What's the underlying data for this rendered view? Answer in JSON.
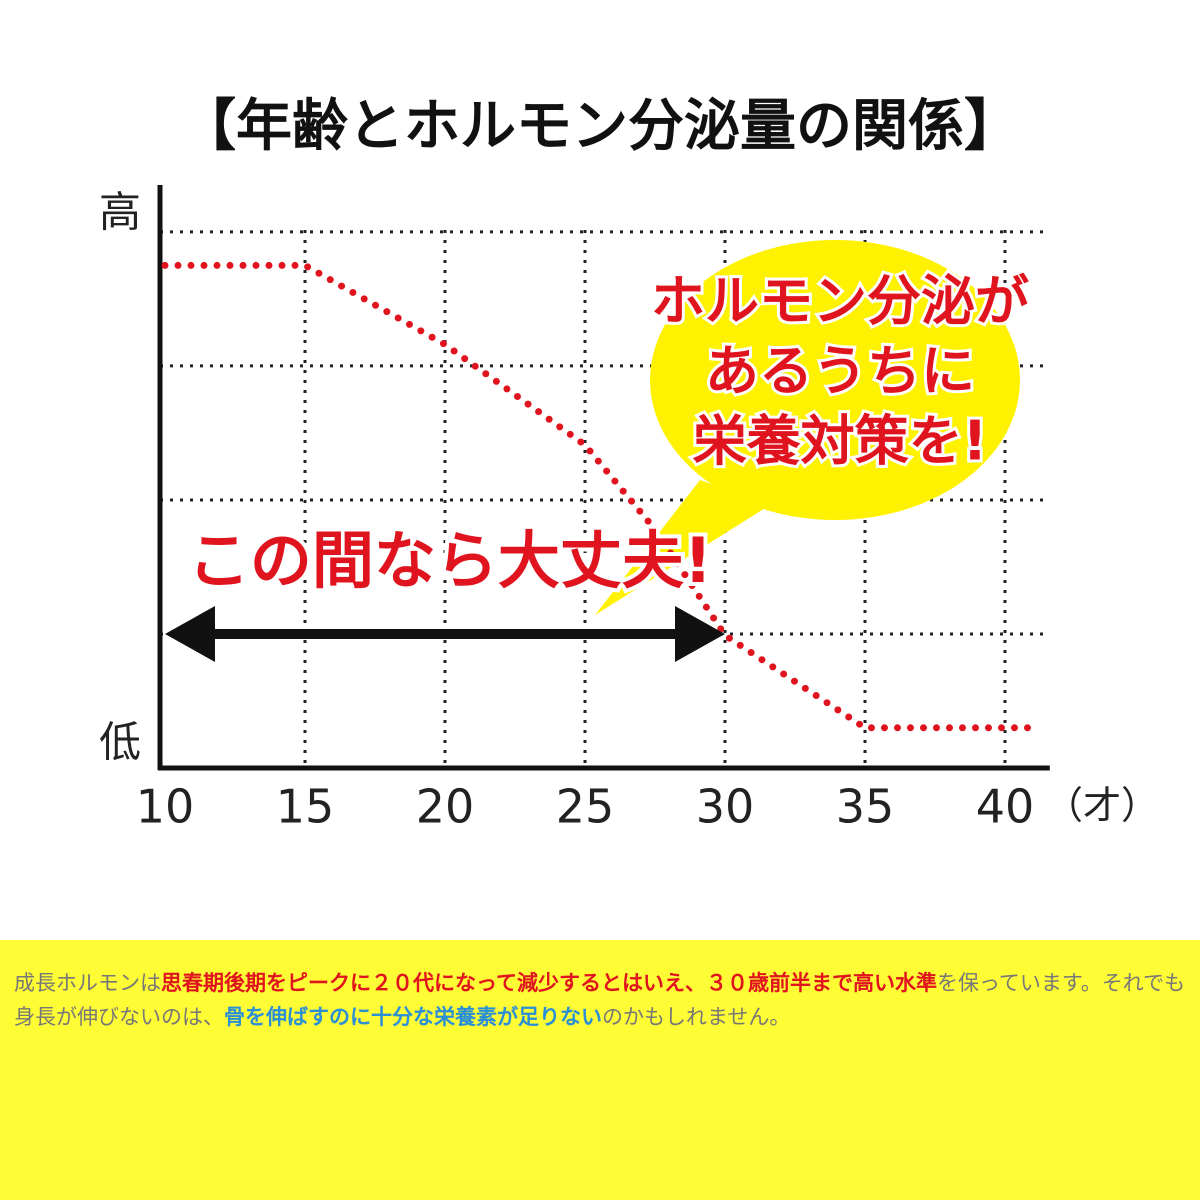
{
  "chart_data": {
    "type": "line",
    "title": "【年齢とホルモン分泌量の関係】",
    "y_high_label": "高",
    "y_low_label": "低",
    "x_unit": "（才）",
    "xlim": [
      10,
      41.6
    ],
    "ylim": [
      0,
      4.35
    ],
    "xticks": [
      10,
      15,
      20,
      25,
      30,
      35,
      40
    ],
    "x_grid": [
      15,
      20,
      25,
      30,
      35,
      40
    ],
    "y_grid": [
      1,
      2,
      3,
      4
    ],
    "grid": true,
    "series": [
      {
        "color": "#e0141e",
        "x": [
          10,
          15,
          20,
          25,
          27.5,
          30,
          35,
          41.25
        ],
        "values": [
          3.75,
          3.75,
          3.16,
          2.41,
          1.78,
          0.99,
          0.3,
          0.3
        ]
      }
    ],
    "arrow": {
      "from": 10,
      "to": 30,
      "y": 1,
      "label": "この間なら大丈夫!"
    },
    "bubble": {
      "lines": [
        "ホルモン分泌が",
        "あるうちに",
        "栄養対策を!"
      ]
    }
  },
  "caption": [
    {
      "text": "成長ホルモンは",
      "color": "#777777"
    },
    {
      "text": "思春期後期をピークに２０代になって減少するとはいえ、３０歳前半まで高い水準",
      "color": "#e0141e"
    },
    {
      "text": "を保っています。それでも身長が伸びないのは、",
      "color": "#777777"
    },
    {
      "text": "骨を伸ばすのに十分な栄養素が足りない",
      "color": "#2b8fd6"
    },
    {
      "text": "のかもしれません。",
      "color": "#777777"
    }
  ]
}
